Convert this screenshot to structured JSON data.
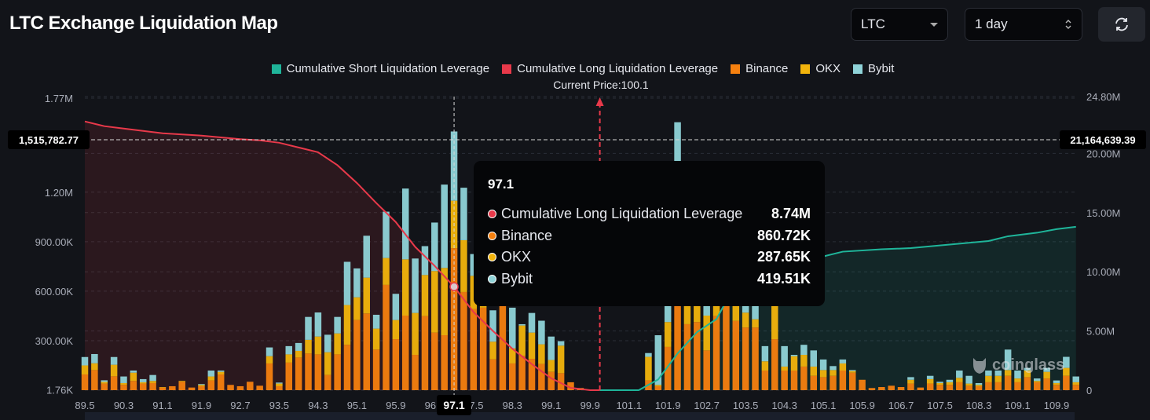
{
  "header": {
    "title": "LTC Exchange Liquidation Map"
  },
  "controls": {
    "symbol": {
      "value": "LTC",
      "icon": "caret-down-icon"
    },
    "range": {
      "value": "1 day",
      "icon": "up-down-chevron-icon"
    },
    "refresh": {
      "icon": "refresh-icon"
    }
  },
  "legend": [
    {
      "label": "Cumulative Short Liquidation Leverage",
      "color": "#1fb59a"
    },
    {
      "label": "Cumulative Long Liquidation Leverage",
      "color": "#e8394a"
    },
    {
      "label": "Binance",
      "color": "#f5800f"
    },
    {
      "label": "OKX",
      "color": "#f2b40c"
    },
    {
      "label": "Bybit",
      "color": "#8fd3d8"
    }
  ],
  "current_price_label": "Current Price:100.1",
  "watermark": "coinglass",
  "tooltip": {
    "title": "97.1",
    "rows": [
      {
        "label": "Cumulative Long Liquidation Leverage",
        "value": "8.74M",
        "color": "#e8394a"
      },
      {
        "label": "Binance",
        "value": "860.72K",
        "color": "#f5800f"
      },
      {
        "label": "OKX",
        "value": "287.65K",
        "color": "#f2b40c"
      },
      {
        "label": "Bybit",
        "value": "419.51K",
        "color": "#8fd3d8"
      }
    ]
  },
  "chart_data": {
    "type": "bar",
    "stacked": true,
    "current_price": "100.1",
    "crosshair": {
      "x": "97.1",
      "left_value": "1,515,782.77",
      "right_value": "21,164,639.39"
    },
    "y_left": {
      "unit": "K",
      "range": [
        0,
        1770
      ],
      "ticks": [
        {
          "label": "1.77M",
          "value": 1770
        },
        {
          "label": "1.20M",
          "value": 1200
        },
        {
          "label": "900.00K",
          "value": 900
        },
        {
          "label": "600.00K",
          "value": 600
        },
        {
          "label": "300.00K",
          "value": 300
        },
        {
          "label": "1.76K",
          "value": 1.76
        }
      ]
    },
    "y_right": {
      "unit": "M",
      "range": [
        0,
        24.8
      ],
      "ticks": [
        {
          "label": "24.80M",
          "value": 24.8
        },
        {
          "label": "20.00M",
          "value": 20
        },
        {
          "label": "15.00M",
          "value": 15
        },
        {
          "label": "10.00M",
          "value": 10
        },
        {
          "label": "5.00M",
          "value": 5
        },
        {
          "label": "0",
          "value": 0
        }
      ]
    },
    "x_tick_every": 4,
    "categories": [
      "89.5",
      "89.7",
      "89.9",
      "90.1",
      "90.3",
      "90.5",
      "90.7",
      "90.9",
      "91.1",
      "91.3",
      "91.5",
      "91.7",
      "91.9",
      "92.1",
      "92.3",
      "92.5",
      "92.7",
      "92.9",
      "93.1",
      "93.3",
      "93.5",
      "93.7",
      "93.9",
      "94.1",
      "94.3",
      "94.5",
      "94.7",
      "94.9",
      "95.1",
      "95.3",
      "95.5",
      "95.7",
      "95.9",
      "96.1",
      "96.3",
      "96.5",
      "96.7",
      "96.9",
      "97.1",
      "97.3",
      "97.5",
      "97.7",
      "97.9",
      "98.1",
      "98.3",
      "98.5",
      "98.7",
      "98.9",
      "99.1",
      "99.3",
      "99.5",
      "99.7",
      "99.9",
      "100.1",
      "100.5",
      "100.9",
      "101.1",
      "101.3",
      "101.5",
      "101.7",
      "101.9",
      "102.1",
      "102.3",
      "102.5",
      "102.7",
      "102.9",
      "103.1",
      "103.3",
      "103.5",
      "103.7",
      "103.9",
      "104.1",
      "104.3",
      "104.5",
      "104.7",
      "104.9",
      "105.1",
      "105.3",
      "105.5",
      "105.7",
      "105.9",
      "106.1",
      "106.3",
      "106.5",
      "106.7",
      "106.9",
      "107.1",
      "107.3",
      "107.5",
      "107.7",
      "107.9",
      "108.1",
      "108.3",
      "108.5",
      "108.7",
      "108.9",
      "109.1",
      "109.3",
      "109.5",
      "109.7",
      "109.9",
      "110.1",
      "110.3"
    ],
    "series": [
      {
        "name": "Binance",
        "color": "#f5800f",
        "values": [
          95,
          122,
          40,
          84,
          32,
          56,
          40,
          43,
          16,
          24,
          51,
          16,
          24,
          59,
          95,
          32,
          24,
          51,
          27,
          162,
          24,
          167,
          198,
          222,
          217,
          92,
          217,
          275,
          425,
          465,
          246,
          638,
          309,
          452,
          214,
          449,
          349,
          333,
          860.72,
          595,
          492,
          500,
          187,
          516,
          162,
          209,
          190,
          159,
          111,
          103,
          48,
          8,
          0,
          0,
          0,
          0,
          0,
          0,
          59,
          24,
          262,
          600,
          400,
          413,
          241,
          450,
          600,
          420,
          380,
          380,
          119,
          309,
          119,
          119,
          143,
          87,
          79,
          87,
          119,
          106,
          63,
          13,
          19,
          27,
          19,
          40,
          16,
          40,
          32,
          32,
          48,
          27,
          24,
          48,
          48,
          87,
          48,
          79,
          48,
          71,
          32,
          87,
          32
        ]
      },
      {
        "name": "OKX",
        "color": "#f2b40c",
        "values": [
          55,
          41,
          10,
          70,
          11,
          50,
          8,
          13,
          3,
          0,
          5,
          0,
          8,
          24,
          16,
          0,
          0,
          0,
          0,
          44,
          16,
          50,
          40,
          83,
          108,
          138,
          127,
          241,
          138,
          217,
          127,
          163,
          116,
          341,
          254,
          249,
          373,
          408,
          287.65,
          314,
          201,
          150,
          107,
          14,
          92,
          183,
          159,
          119,
          72,
          167,
          0,
          5,
          0,
          0,
          0,
          0,
          0,
          0,
          143,
          8,
          151,
          250,
          200,
          147,
          211,
          150,
          100,
          180,
          90,
          50,
          56,
          231,
          24,
          87,
          71,
          56,
          43,
          35,
          43,
          10,
          0,
          0,
          0,
          0,
          0,
          23,
          0,
          27,
          11,
          16,
          27,
          13,
          8,
          39,
          39,
          35,
          23,
          40,
          8,
          40,
          11,
          48,
          16
        ]
      },
      {
        "name": "Bybit",
        "color": "#8fd3d8",
        "values": [
          51,
          56,
          10,
          47,
          40,
          13,
          19,
          36,
          0,
          0,
          0,
          0,
          5,
          36,
          8,
          0,
          0,
          0,
          0,
          53,
          6,
          50,
          48,
          139,
          146,
          106,
          100,
          262,
          175,
          254,
          84,
          281,
          159,
          429,
          330,
          175,
          294,
          505,
          419.51,
          318,
          132,
          100,
          190,
          30,
          246,
          8,
          119,
          143,
          142,
          27,
          0,
          0,
          0,
          0,
          0,
          0,
          0,
          0,
          23,
          301,
          287,
          774,
          100,
          90,
          148,
          50,
          100,
          100,
          150,
          130,
          92,
          20,
          124,
          8,
          61,
          98,
          64,
          24,
          24,
          6,
          0,
          0,
          0,
          0,
          0,
          16,
          0,
          20,
          8,
          15,
          44,
          47,
          11,
          32,
          32,
          124,
          48,
          16,
          15,
          24,
          16,
          67,
          35
        ]
      },
      {
        "name": "Cumulative Long Liquidation Leverage",
        "color": "#e8394a",
        "axis": "right",
        "points": [
          [
            "89.5",
            22.7
          ],
          [
            "89.9",
            22.3
          ],
          [
            "90.3",
            22.1
          ],
          [
            "90.7",
            21.9
          ],
          [
            "91.1",
            21.7
          ],
          [
            "91.9",
            21.5
          ],
          [
            "92.7",
            21.2
          ],
          [
            "93.1",
            21.1
          ],
          [
            "93.5",
            20.9
          ],
          [
            "93.9",
            20.5
          ],
          [
            "94.3",
            20.1
          ],
          [
            "94.7",
            19.0
          ],
          [
            "95.1",
            17.5
          ],
          [
            "95.5",
            15.8
          ],
          [
            "95.9",
            14.2
          ],
          [
            "96.3",
            12.1
          ],
          [
            "96.7",
            10.5
          ],
          [
            "97.1",
            8.74
          ],
          [
            "97.5",
            6.6
          ],
          [
            "97.9",
            5.0
          ],
          [
            "98.3",
            3.5
          ],
          [
            "98.7",
            2.2
          ],
          [
            "99.1",
            1.0
          ],
          [
            "99.5",
            0.2
          ],
          [
            "99.9",
            0
          ],
          [
            "100.1",
            0
          ]
        ]
      },
      {
        "name": "Cumulative Short Liquidation Leverage",
        "color": "#1fb59a",
        "axis": "right",
        "points": [
          [
            "100.1",
            0
          ],
          [
            "101.3",
            0
          ],
          [
            "101.7",
            0.9
          ],
          [
            "102.1",
            3.1
          ],
          [
            "102.5",
            4.9
          ],
          [
            "102.9",
            6.0
          ],
          [
            "103.1",
            7.5
          ],
          [
            "103.3",
            8.3
          ],
          [
            "103.7",
            10.0
          ],
          [
            "104.3",
            11.0
          ],
          [
            "105.1",
            11.3
          ],
          [
            "105.5",
            11.7
          ],
          [
            "106.3",
            11.9
          ],
          [
            "106.9",
            12.0
          ],
          [
            "107.7",
            12.3
          ],
          [
            "108.5",
            12.6
          ],
          [
            "108.9",
            13.0
          ],
          [
            "109.5",
            13.3
          ],
          [
            "109.9",
            13.6
          ],
          [
            "110.3",
            13.8
          ]
        ]
      }
    ]
  }
}
